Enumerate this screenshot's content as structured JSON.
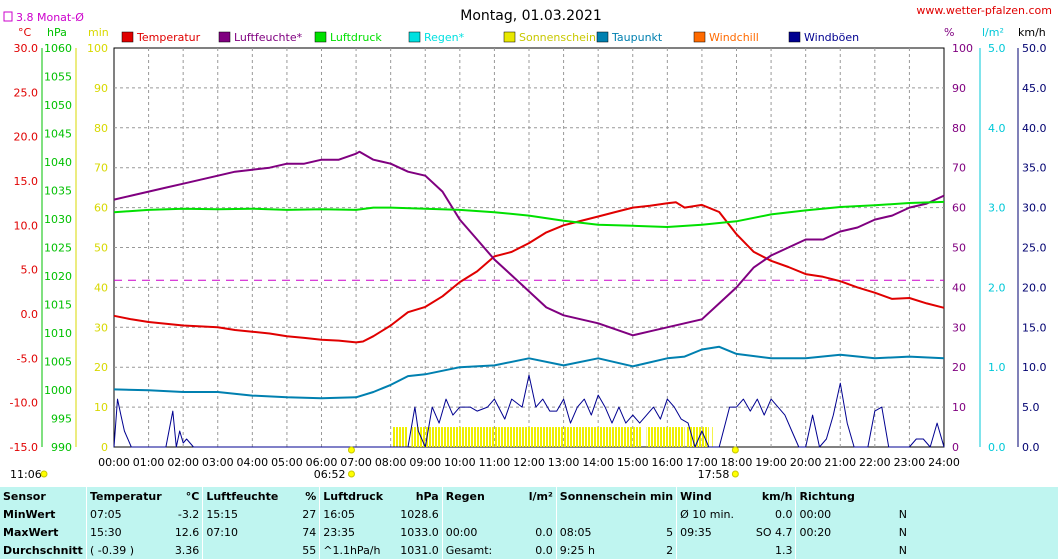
{
  "page": {
    "title": "Montag, 01.03.2021",
    "site": "www.wetter-pfalzen.com",
    "monthly_label": "3.8 Monat-Ø"
  },
  "axes": {
    "left_units": [
      "°C",
      "hPa",
      "min"
    ],
    "right_units": [
      "%",
      "l/m²",
      "km/h"
    ],
    "temperature_ticks": [
      "30.0",
      "25.0",
      "20.0",
      "15.0",
      "10.0",
      "5.0",
      "0.0",
      "-5.0",
      "-10.0",
      "-15.0"
    ],
    "pressure_ticks": [
      "1060",
      "1055",
      "1050",
      "1045",
      "1040",
      "1035",
      "1030",
      "1025",
      "1020",
      "1015",
      "1010",
      "1005",
      "1000",
      "995",
      "990"
    ],
    "sunshine_ticks": [
      "100",
      "90",
      "80",
      "70",
      "60",
      "50",
      "40",
      "30",
      "20",
      "10",
      "0"
    ],
    "humidity_ticks": [
      "100",
      "90",
      "80",
      "70",
      "60",
      "50",
      "40",
      "30",
      "20",
      "10",
      "0"
    ],
    "rain_ticks": [
      "5.0",
      "4.0",
      "3.0",
      "2.0",
      "1.0",
      "0.0"
    ],
    "wind_ticks": [
      "50.0",
      "45.0",
      "40.0",
      "35.0",
      "30.0",
      "25.0",
      "20.0",
      "15.0",
      "10.0",
      "5.0",
      "0.0"
    ],
    "time_ticks": [
      "00:00",
      "01:00",
      "02:00",
      "03:00",
      "04:00",
      "05:00",
      "06:00",
      "07:00",
      "08:00",
      "09:00",
      "10:00",
      "11:00",
      "12:00",
      "13:00",
      "14:00",
      "15:00",
      "16:00",
      "17:00",
      "18:00",
      "19:00",
      "20:00",
      "21:00",
      "22:00",
      "23:00",
      "24:00"
    ],
    "sunrise_time": "06:52",
    "sunset_time": "17:58",
    "left_marker_time": "11:06"
  },
  "legend": [
    {
      "label": "Temperatur",
      "color": "#e00000"
    },
    {
      "label": "Luftfeuchte*",
      "color": "#800080"
    },
    {
      "label": "Luftdruck",
      "color": "#00e000"
    },
    {
      "label": "Regen*",
      "color": "#00e0e0"
    },
    {
      "label": "Sonnenschein",
      "color": "#e8e800"
    },
    {
      "label": "Taupunkt",
      "color": "#0080b0"
    },
    {
      "label": "Windchill",
      "color": "#ff6a00"
    },
    {
      "label": "Windböen",
      "color": "#000090"
    }
  ],
  "chart_data": {
    "type": "line",
    "x_unit": "hours",
    "xlim": [
      0,
      24
    ],
    "temperature_ylim": [
      -15,
      30
    ],
    "pressure_ylim": [
      990,
      1060
    ],
    "percent_ylim": [
      0,
      100
    ],
    "wind_ylim": [
      0,
      50
    ],
    "monthly_mean_temperature": 3.8,
    "series": [
      {
        "name": "Temperatur",
        "axis": "temperature",
        "color": "#e00000",
        "x": [
          0,
          0.5,
          1,
          1.5,
          2,
          2.5,
          3,
          3.5,
          4,
          4.5,
          5,
          5.5,
          6,
          6.5,
          7,
          7.2,
          7.5,
          8,
          8.5,
          9,
          9.5,
          10,
          10.5,
          11,
          11.5,
          12,
          12.5,
          13,
          13.5,
          14,
          14.5,
          15,
          15.5,
          16,
          16.25,
          16.5,
          17,
          17.5,
          18,
          18.5,
          19,
          19.5,
          20,
          20.5,
          21,
          21.5,
          22,
          22.5,
          23,
          23.5,
          24
        ],
        "values": [
          -0.2,
          -0.6,
          -0.9,
          -1.1,
          -1.3,
          -1.4,
          -1.5,
          -1.8,
          -2.0,
          -2.2,
          -2.5,
          -2.7,
          -2.9,
          -3.0,
          -3.2,
          -3.1,
          -2.5,
          -1.3,
          0.2,
          0.8,
          2.0,
          3.6,
          4.8,
          6.5,
          7.0,
          8.0,
          9.2,
          10.0,
          10.5,
          11.0,
          11.5,
          12.0,
          12.2,
          12.5,
          12.6,
          12.0,
          12.3,
          11.5,
          9.0,
          7.0,
          6.0,
          5.3,
          4.5,
          4.2,
          3.7,
          3.0,
          2.4,
          1.7,
          1.8,
          1.2,
          0.7
        ]
      },
      {
        "name": "Luftfeuchte*",
        "axis": "percent",
        "color": "#800080",
        "x": [
          0,
          0.5,
          1,
          1.5,
          2,
          2.5,
          3,
          3.5,
          4,
          4.5,
          5,
          5.5,
          6,
          6.5,
          7,
          7.1,
          7.5,
          8,
          8.5,
          9,
          9.5,
          10,
          10.5,
          11,
          11.5,
          12,
          12.5,
          13,
          13.5,
          14,
          14.5,
          15,
          15.5,
          16,
          16.5,
          17,
          17.5,
          18,
          18.5,
          19,
          19.5,
          20,
          20.5,
          21,
          21.5,
          22,
          22.5,
          23,
          23.5,
          24
        ],
        "values": [
          62,
          63,
          64,
          65,
          66,
          67,
          68,
          69,
          69.5,
          70,
          71,
          71,
          72,
          72,
          73.5,
          74,
          72,
          71,
          69,
          68,
          64,
          57,
          52,
          47,
          43,
          39,
          35,
          33,
          32,
          31,
          29.5,
          28,
          29,
          30,
          31,
          32,
          36,
          40,
          45,
          48,
          50,
          52,
          52,
          54,
          55,
          57,
          58,
          60,
          61,
          63
        ]
      },
      {
        "name": "Luftdruck",
        "axis": "pressure",
        "color": "#00e000",
        "x": [
          0,
          1,
          2,
          3,
          4,
          5,
          6,
          7,
          7.5,
          8,
          9,
          10,
          11,
          12,
          13,
          14,
          15,
          16,
          17,
          18,
          19,
          20,
          21,
          22,
          23,
          24
        ],
        "values": [
          1031.2,
          1031.6,
          1031.8,
          1031.7,
          1031.8,
          1031.6,
          1031.7,
          1031.6,
          1032.0,
          1032.0,
          1031.8,
          1031.6,
          1031.2,
          1030.6,
          1029.7,
          1029.0,
          1028.8,
          1028.6,
          1029.0,
          1029.6,
          1030.8,
          1031.5,
          1032.1,
          1032.4,
          1032.8,
          1033.0
        ]
      },
      {
        "name": "Taupunkt",
        "axis": "temperature",
        "color": "#0080b0",
        "x": [
          0,
          1,
          2,
          3,
          4,
          5,
          6,
          7,
          7.5,
          8,
          8.5,
          9,
          10,
          11,
          12,
          13,
          14,
          15,
          16,
          16.5,
          17,
          17.5,
          18,
          19,
          20,
          21,
          22,
          23,
          24
        ],
        "values": [
          -8.5,
          -8.6,
          -8.8,
          -8.8,
          -9.2,
          -9.4,
          -9.5,
          -9.4,
          -8.8,
          -8.0,
          -7.0,
          -6.8,
          -6.0,
          -5.8,
          -5.0,
          -5.8,
          -5.0,
          -5.9,
          -5.0,
          -4.8,
          -4.0,
          -3.7,
          -4.5,
          -5.0,
          -5.0,
          -4.6,
          -5.0,
          -4.8,
          -5.0
        ]
      },
      {
        "name": "Windböen",
        "axis": "wind",
        "color": "#000090",
        "x": [
          0,
          0.1,
          0.2,
          0.3,
          0.5,
          1.5,
          1.7,
          1.8,
          1.9,
          2.0,
          2.1,
          2.3,
          8.5,
          8.7,
          8.8,
          9.0,
          9.2,
          9.4,
          9.6,
          9.8,
          10.0,
          10.3,
          10.5,
          10.8,
          11.0,
          11.3,
          11.5,
          11.8,
          12.0,
          12.2,
          12.4,
          12.6,
          12.8,
          13.0,
          13.2,
          13.4,
          13.6,
          13.8,
          14.0,
          14.2,
          14.4,
          14.6,
          14.8,
          15.0,
          15.2,
          15.4,
          15.6,
          15.8,
          16.0,
          16.2,
          16.4,
          16.6,
          16.8,
          17.0,
          17.2,
          17.5,
          17.8,
          18.0,
          18.2,
          18.4,
          18.6,
          18.8,
          19.0,
          19.2,
          19.4,
          19.6,
          19.8,
          20.0,
          20.2,
          20.4,
          20.6,
          20.8,
          21.0,
          21.2,
          21.4,
          21.6,
          21.8,
          22.0,
          22.2,
          22.4,
          22.6,
          22.8,
          23.0,
          23.2,
          23.4,
          23.6,
          23.8,
          24.0
        ],
        "values": [
          0,
          6,
          4,
          2,
          0,
          0,
          4.5,
          0,
          2,
          0.5,
          1,
          0,
          0,
          5,
          2,
          0,
          5,
          3,
          6,
          4,
          5,
          5,
          4.5,
          5,
          6,
          3.5,
          6,
          5,
          9,
          5,
          6,
          4.5,
          4.5,
          6,
          3,
          5,
          6,
          4,
          6.5,
          5,
          3,
          5,
          3,
          4,
          3,
          4,
          5,
          3.5,
          6,
          5,
          3.5,
          3,
          0,
          2,
          0,
          0,
          5,
          5,
          6,
          4.5,
          6,
          4,
          6,
          5,
          4,
          2,
          0,
          0,
          4,
          0,
          1,
          4,
          8,
          3,
          0,
          0,
          0,
          4.5,
          5,
          0,
          0,
          0,
          0,
          1,
          1,
          0,
          3,
          0
        ]
      },
      {
        "name": "Sonnenschein",
        "axis": "percent",
        "color": "#e8e800",
        "blocks": [
          [
            8.05,
            8.5
          ],
          [
            8.6,
            15.25
          ],
          [
            15.4,
            16.5
          ],
          [
            16.55,
            17.2
          ],
          [
            17.3,
            17.3
          ]
        ],
        "block_value": 5
      }
    ]
  },
  "stats": {
    "headers": [
      {
        "k": "sensor",
        "text": "Sensor"
      },
      {
        "k": "temp",
        "text": "Temperatur",
        "unit": "°C"
      },
      {
        "k": "hum",
        "text": "Luftfeuchte",
        "unit": "%"
      },
      {
        "k": "press",
        "text": "Luftdruck",
        "unit": "hPa"
      },
      {
        "k": "rain",
        "text": "Regen",
        "unit": "l/m²"
      },
      {
        "k": "sun",
        "text": "Sonnenschein min"
      },
      {
        "k": "wind",
        "text": "Wind",
        "unit": "km/h"
      },
      {
        "k": "dir",
        "text": "Richtung"
      }
    ],
    "rows": [
      {
        "label": "MinWert",
        "temp_time": "07:05",
        "temp_val": "-3.2",
        "hum_time": "15:15",
        "hum_val": "27",
        "press_time": "16:05",
        "press_val": "1028.6",
        "rain_time": "",
        "rain_val": "",
        "sun_time": "",
        "sun_val": "",
        "wind_time": "Ø 10 min.",
        "wind_val": "0.0",
        "dir_time": "00:00",
        "dir_val": "N"
      },
      {
        "label": "MaxWert",
        "temp_time": "15:30",
        "temp_val": "12.6",
        "hum_time": "07:10",
        "hum_val": "74",
        "press_time": "23:35",
        "press_val": "1033.0",
        "rain_time": "00:00",
        "rain_val": "0.0",
        "sun_time": "08:05",
        "sun_val": "5",
        "wind_time": "09:35",
        "wind_val": "SO 4.7",
        "dir_time": "00:20",
        "dir_val": "N"
      },
      {
        "label": "Durchschnitt",
        "temp_time": "( -0.39 )",
        "temp_val": "3.36",
        "hum_time": "",
        "hum_val": "55",
        "press_time": "^1.1hPa/h",
        "press_val": "1031.0",
        "rain_time": "Gesamt:",
        "rain_val": "0.0",
        "sun_time": "9:25 h",
        "sun_val": "2",
        "wind_time": "",
        "wind_val": "1.3",
        "dir_time": "",
        "dir_val": "N"
      }
    ]
  }
}
